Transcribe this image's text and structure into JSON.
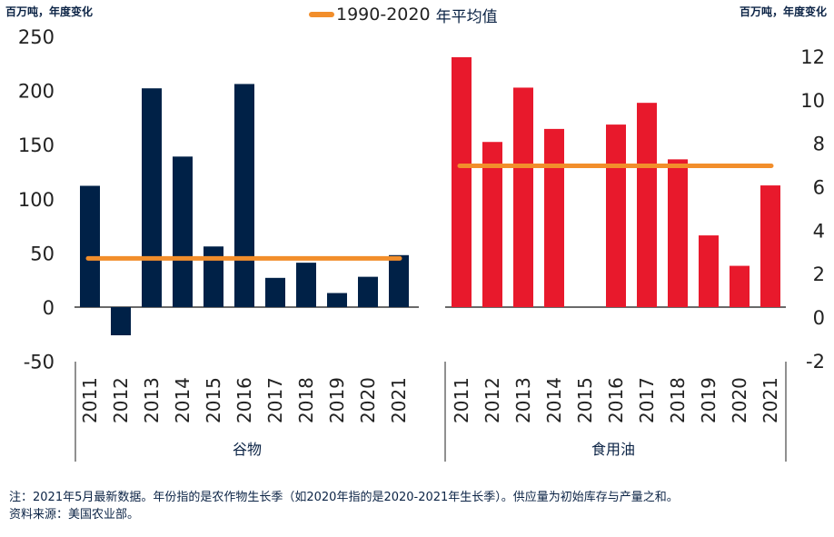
{
  "chart_data": {
    "type": "bar",
    "title": "",
    "legend": {
      "label": "1990-2020",
      "label_cn": "年平均值",
      "placement": "top-center"
    },
    "left_axis": {
      "unit_label": "百万吨，年度变化",
      "ticks": [
        250,
        200,
        150,
        100,
        50,
        0,
        -50
      ],
      "ylim": [
        -50,
        250
      ]
    },
    "right_axis": {
      "unit_label": "百万吨，年度变化",
      "ticks": [
        12,
        10,
        8,
        6,
        4,
        2,
        0,
        -2
      ],
      "ylim": [
        -2,
        12.5
      ]
    },
    "groups": [
      {
        "name": "谷物",
        "axis": "left",
        "color": "#002147",
        "categories": [
          "2011",
          "2012",
          "2013",
          "2014",
          "2015",
          "2016",
          "2017",
          "2018",
          "2019",
          "2020",
          "2021"
        ],
        "values": [
          112,
          -26,
          202,
          139,
          56,
          206,
          27,
          41,
          13,
          28,
          48
        ],
        "average": 45
      },
      {
        "name": "食用油",
        "axis": "right",
        "color": "#e8192c",
        "categories": [
          "2011",
          "2012",
          "2013",
          "2014",
          "2015",
          "2016",
          "2017",
          "2018",
          "2019",
          "2020",
          "2021"
        ],
        "values": [
          11.5,
          7.6,
          10.1,
          8.2,
          0,
          8.4,
          9.4,
          6.8,
          3.3,
          1.9,
          5.6
        ],
        "average": 6.5
      }
    ],
    "average_color": "#f28e2b",
    "grid": false
  },
  "notes": {
    "line1": "注：2021年5月最新数据。年份指的是农作物生长季（如2020年指的是2020-2021年生长季）。供应量为初始库存与产量之和。",
    "line2": "资料来源：美国农业部。"
  }
}
